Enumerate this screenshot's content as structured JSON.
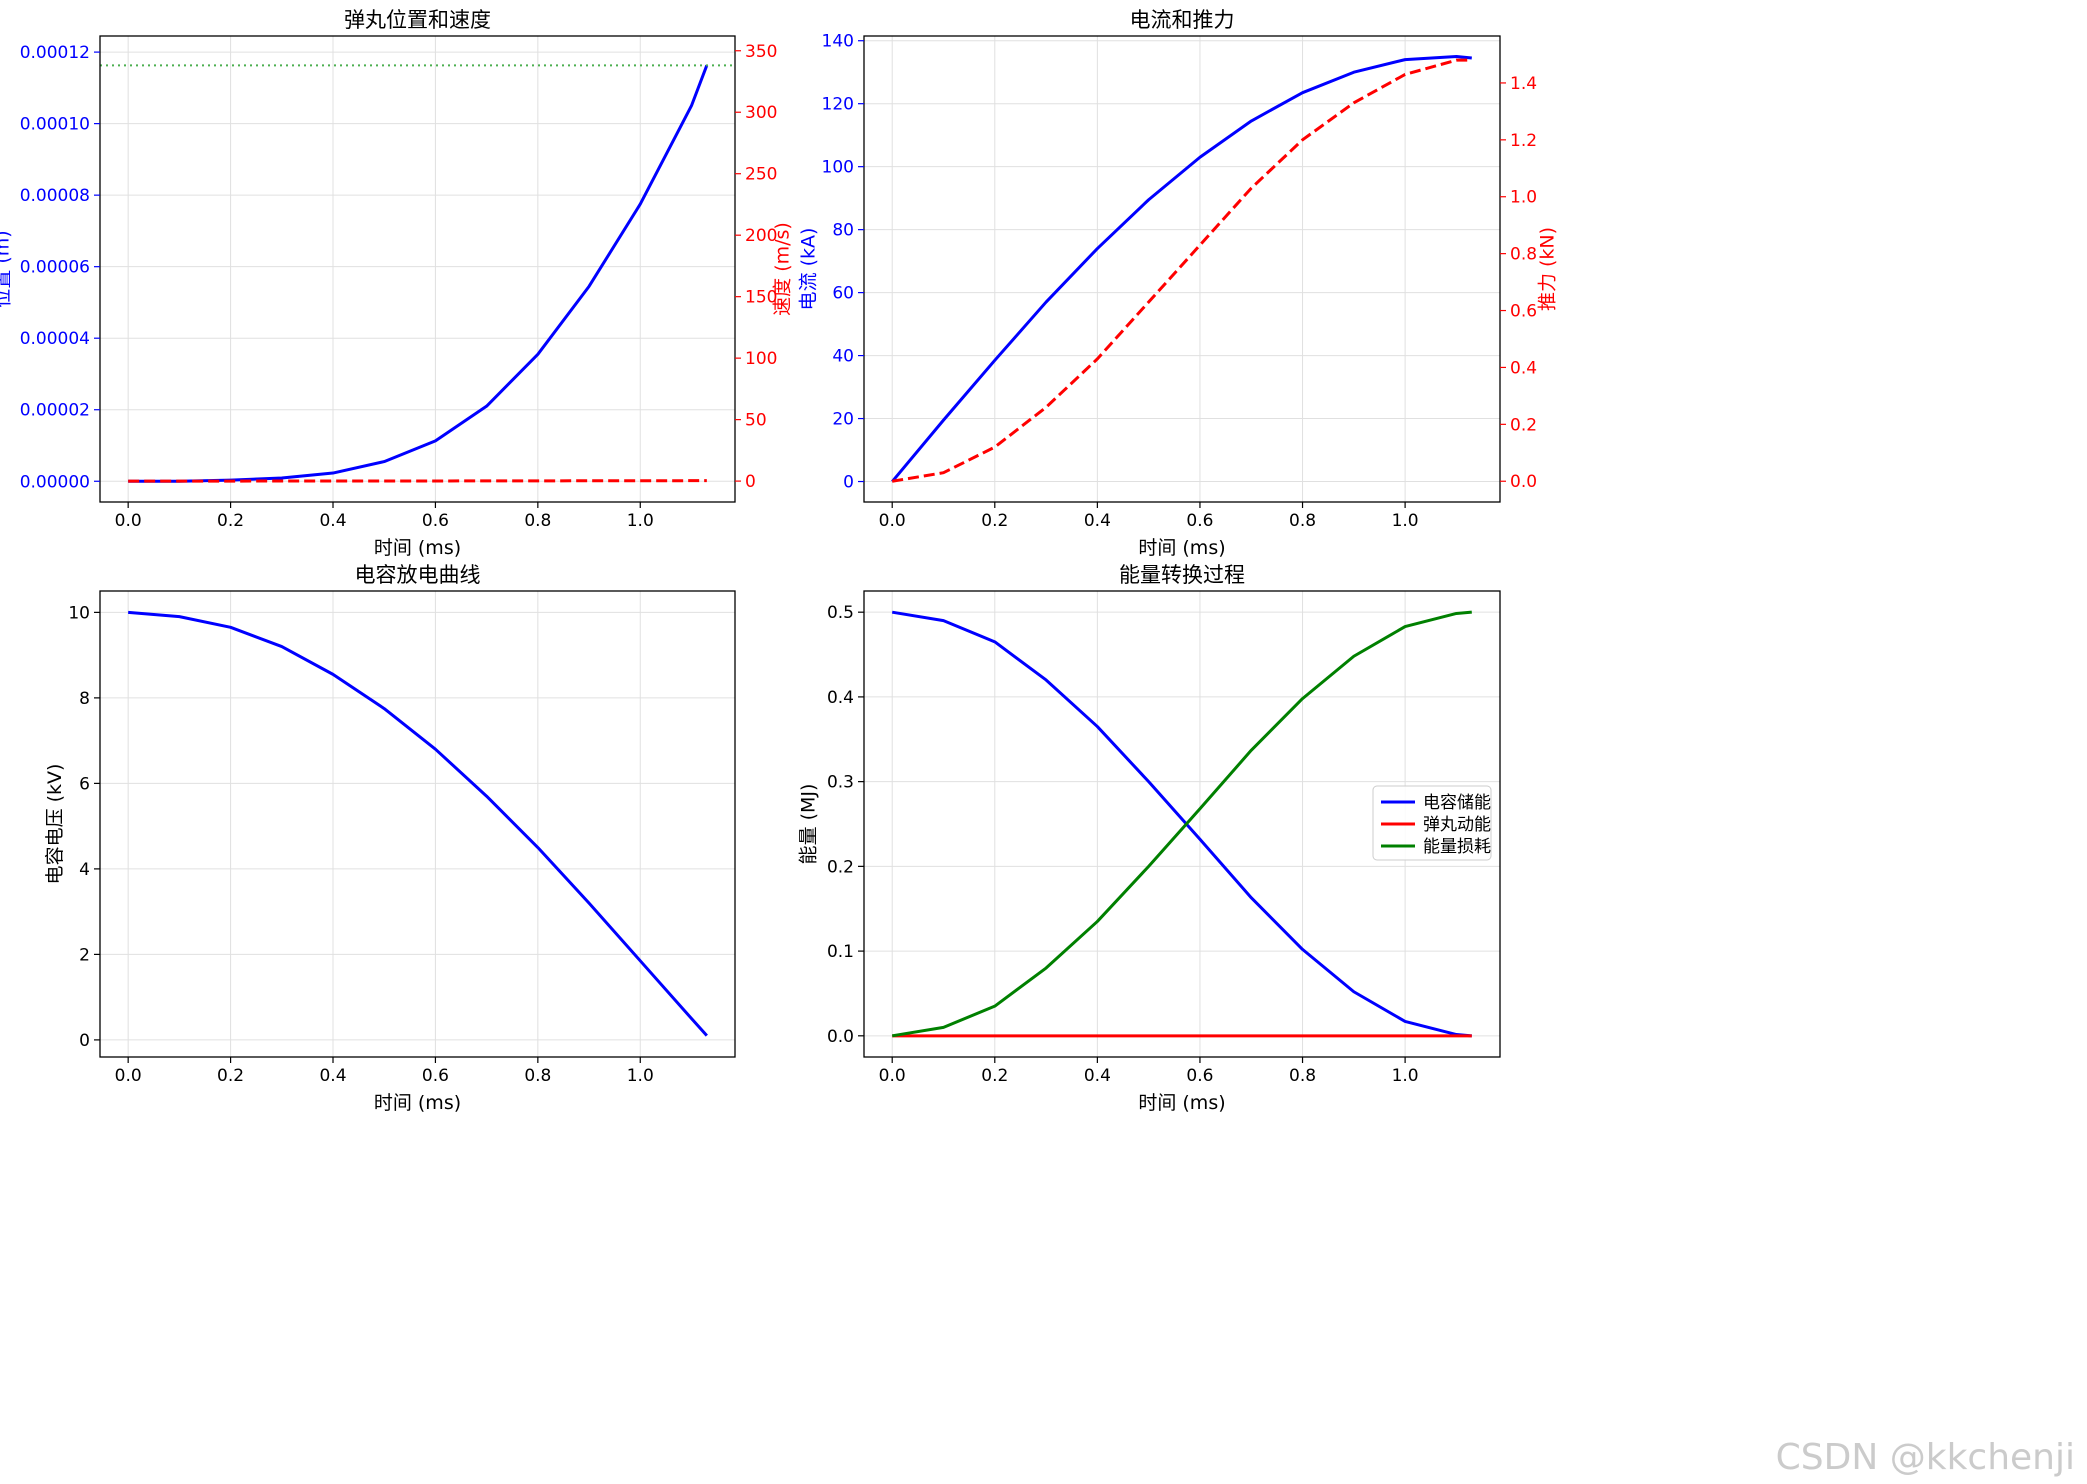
{
  "watermark": "CSDN @kkchenji",
  "colors": {
    "blue": "#0000ff",
    "red": "#ff0000",
    "green": "#008000",
    "dotted_green": "#4caf50",
    "grid": "#e0e0e0",
    "axis": "#000000"
  },
  "chart_data": [
    {
      "id": "pos_vel",
      "type": "line",
      "title": "弹丸位置和速度",
      "xlabel": "时间 (ms)",
      "ylabel": "位置 (m)",
      "ylabel_right": "速度 (m/s)",
      "xlim": [
        -0.055,
        1.185
      ],
      "ylim": [
        -5.8e-06,
        0.0001245
      ],
      "ylim_right": [
        -17,
        362
      ],
      "xticks": [
        0.0,
        0.2,
        0.4,
        0.6,
        0.8,
        1.0
      ],
      "xtick_labels": [
        "0.0",
        "0.2",
        "0.4",
        "0.6",
        "0.8",
        "1.0"
      ],
      "yticks": [
        0,
        2e-05,
        4e-05,
        6e-05,
        8e-05,
        0.0001,
        0.00012
      ],
      "ytick_labels": [
        "0.00000",
        "0.00002",
        "0.00004",
        "0.00006",
        "0.00008",
        "0.00010",
        "0.00012"
      ],
      "yticks_right": [
        0,
        50,
        100,
        150,
        200,
        250,
        300,
        350
      ],
      "ytick_labels_right": [
        "0",
        "50",
        "100",
        "150",
        "200",
        "250",
        "300",
        "350"
      ],
      "series": [
        {
          "name": "位置",
          "axis": "left",
          "style": "solid",
          "color": "#0000ff",
          "x": [
            0,
            0.1,
            0.2,
            0.3,
            0.4,
            0.5,
            0.6,
            0.7,
            0.8,
            0.9,
            1.0,
            1.1,
            1.13
          ],
          "y": [
            0,
            2e-08,
            3.1e-07,
            9e-07,
            2.3e-06,
            5.5e-06,
            1.13e-05,
            2.1e-05,
            3.55e-05,
            5.45e-05,
            7.75e-05,
            0.000105,
            0.0001163
          ]
        },
        {
          "name": "速度",
          "axis": "right",
          "style": "dashed",
          "color": "#ff0000",
          "x": [
            0,
            0.2,
            0.4,
            0.6,
            0.8,
            1.0,
            1.13
          ],
          "y": [
            0,
            0.02,
            0.06,
            0.12,
            0.2,
            0.3,
            0.35
          ]
        },
        {
          "name": "参考线",
          "axis": "left",
          "style": "dotted",
          "color": "#4caf50",
          "x": [
            -0.055,
            1.185
          ],
          "y": [
            0.0001163,
            0.0001163
          ]
        }
      ]
    },
    {
      "id": "current_force",
      "type": "line",
      "title": "电流和推力",
      "xlabel": "时间 (ms)",
      "ylabel": "电流 (kA)",
      "ylabel_right": "推力 (kN)",
      "xlim": [
        -0.055,
        1.185
      ],
      "ylim": [
        -6.5,
        141.5
      ],
      "ylim_right": [
        -0.073,
        1.565
      ],
      "xticks": [
        0.0,
        0.2,
        0.4,
        0.6,
        0.8,
        1.0
      ],
      "xtick_labels": [
        "0.0",
        "0.2",
        "0.4",
        "0.6",
        "0.8",
        "1.0"
      ],
      "yticks": [
        0,
        20,
        40,
        60,
        80,
        100,
        120,
        140
      ],
      "ytick_labels": [
        "0",
        "20",
        "40",
        "60",
        "80",
        "100",
        "120",
        "140"
      ],
      "yticks_right": [
        0,
        0.2,
        0.4,
        0.6,
        0.8,
        1.0,
        1.2,
        1.4
      ],
      "ytick_labels_right": [
        "0.0",
        "0.2",
        "0.4",
        "0.6",
        "0.8",
        "1.0",
        "1.2",
        "1.4"
      ],
      "series": [
        {
          "name": "电流",
          "axis": "left",
          "style": "solid",
          "color": "#0000ff",
          "x": [
            0,
            0.1,
            0.2,
            0.3,
            0.4,
            0.5,
            0.6,
            0.7,
            0.8,
            0.9,
            1.0,
            1.1,
            1.13
          ],
          "y": [
            0,
            19.5,
            38.5,
            57,
            74,
            89.5,
            103,
            114.5,
            123.5,
            130,
            134,
            135,
            134.5
          ]
        },
        {
          "name": "推力",
          "axis": "right",
          "style": "dashed",
          "color": "#ff0000",
          "x": [
            0,
            0.1,
            0.2,
            0.3,
            0.4,
            0.5,
            0.6,
            0.7,
            0.8,
            0.9,
            1.0,
            1.1,
            1.13
          ],
          "y": [
            0,
            0.03,
            0.12,
            0.26,
            0.43,
            0.63,
            0.83,
            1.03,
            1.2,
            1.33,
            1.43,
            1.48,
            1.48
          ]
        }
      ]
    },
    {
      "id": "cap_voltage",
      "type": "line",
      "title": "电容放电曲线",
      "xlabel": "时间 (ms)",
      "ylabel": "电容电压 (kV)",
      "xlim": [
        -0.055,
        1.185
      ],
      "ylim": [
        -0.4,
        10.5
      ],
      "xticks": [
        0.0,
        0.2,
        0.4,
        0.6,
        0.8,
        1.0
      ],
      "xtick_labels": [
        "0.0",
        "0.2",
        "0.4",
        "0.6",
        "0.8",
        "1.0"
      ],
      "yticks": [
        0,
        2,
        4,
        6,
        8,
        10
      ],
      "ytick_labels": [
        "0",
        "2",
        "4",
        "6",
        "8",
        "10"
      ],
      "series": [
        {
          "name": "电容电压",
          "axis": "left",
          "style": "solid",
          "color": "#0000ff",
          "x": [
            0,
            0.1,
            0.2,
            0.3,
            0.4,
            0.5,
            0.6,
            0.7,
            0.8,
            0.9,
            1.0,
            1.1,
            1.13
          ],
          "y": [
            10,
            9.9,
            9.65,
            9.2,
            8.55,
            7.75,
            6.8,
            5.7,
            4.5,
            3.2,
            1.85,
            0.5,
            0.1
          ]
        }
      ]
    },
    {
      "id": "energy",
      "type": "line",
      "title": "能量转换过程",
      "xlabel": "时间 (ms)",
      "ylabel": "能量 (MJ)",
      "xlim": [
        -0.055,
        1.185
      ],
      "ylim": [
        -0.025,
        0.525
      ],
      "xticks": [
        0.0,
        0.2,
        0.4,
        0.6,
        0.8,
        1.0
      ],
      "xtick_labels": [
        "0.0",
        "0.2",
        "0.4",
        "0.6",
        "0.8",
        "1.0"
      ],
      "yticks": [
        0,
        0.1,
        0.2,
        0.3,
        0.4,
        0.5
      ],
      "ytick_labels": [
        "0.0",
        "0.1",
        "0.2",
        "0.3",
        "0.4",
        "0.5"
      ],
      "legend": {
        "placement": "center-right",
        "entries": [
          "电容储能",
          "弹丸动能",
          "能量损耗"
        ]
      },
      "series": [
        {
          "name": "电容储能",
          "axis": "left",
          "style": "solid",
          "color": "#0000ff",
          "x": [
            0,
            0.1,
            0.2,
            0.3,
            0.4,
            0.5,
            0.6,
            0.7,
            0.8,
            0.9,
            1.0,
            1.1,
            1.13
          ],
          "y": [
            0.5,
            0.49,
            0.465,
            0.42,
            0.365,
            0.3,
            0.232,
            0.163,
            0.102,
            0.052,
            0.017,
            0.0015,
            0
          ]
        },
        {
          "name": "弹丸动能",
          "axis": "left",
          "style": "solid",
          "color": "#ff0000",
          "x": [
            0,
            1.13
          ],
          "y": [
            0,
            0
          ]
        },
        {
          "name": "能量损耗",
          "axis": "left",
          "style": "solid",
          "color": "#008000",
          "x": [
            0,
            0.1,
            0.2,
            0.3,
            0.4,
            0.5,
            0.6,
            0.7,
            0.8,
            0.9,
            1.0,
            1.1,
            1.13
          ],
          "y": [
            0,
            0.01,
            0.035,
            0.08,
            0.135,
            0.2,
            0.268,
            0.337,
            0.398,
            0.448,
            0.483,
            0.4985,
            0.5
          ]
        }
      ]
    }
  ]
}
